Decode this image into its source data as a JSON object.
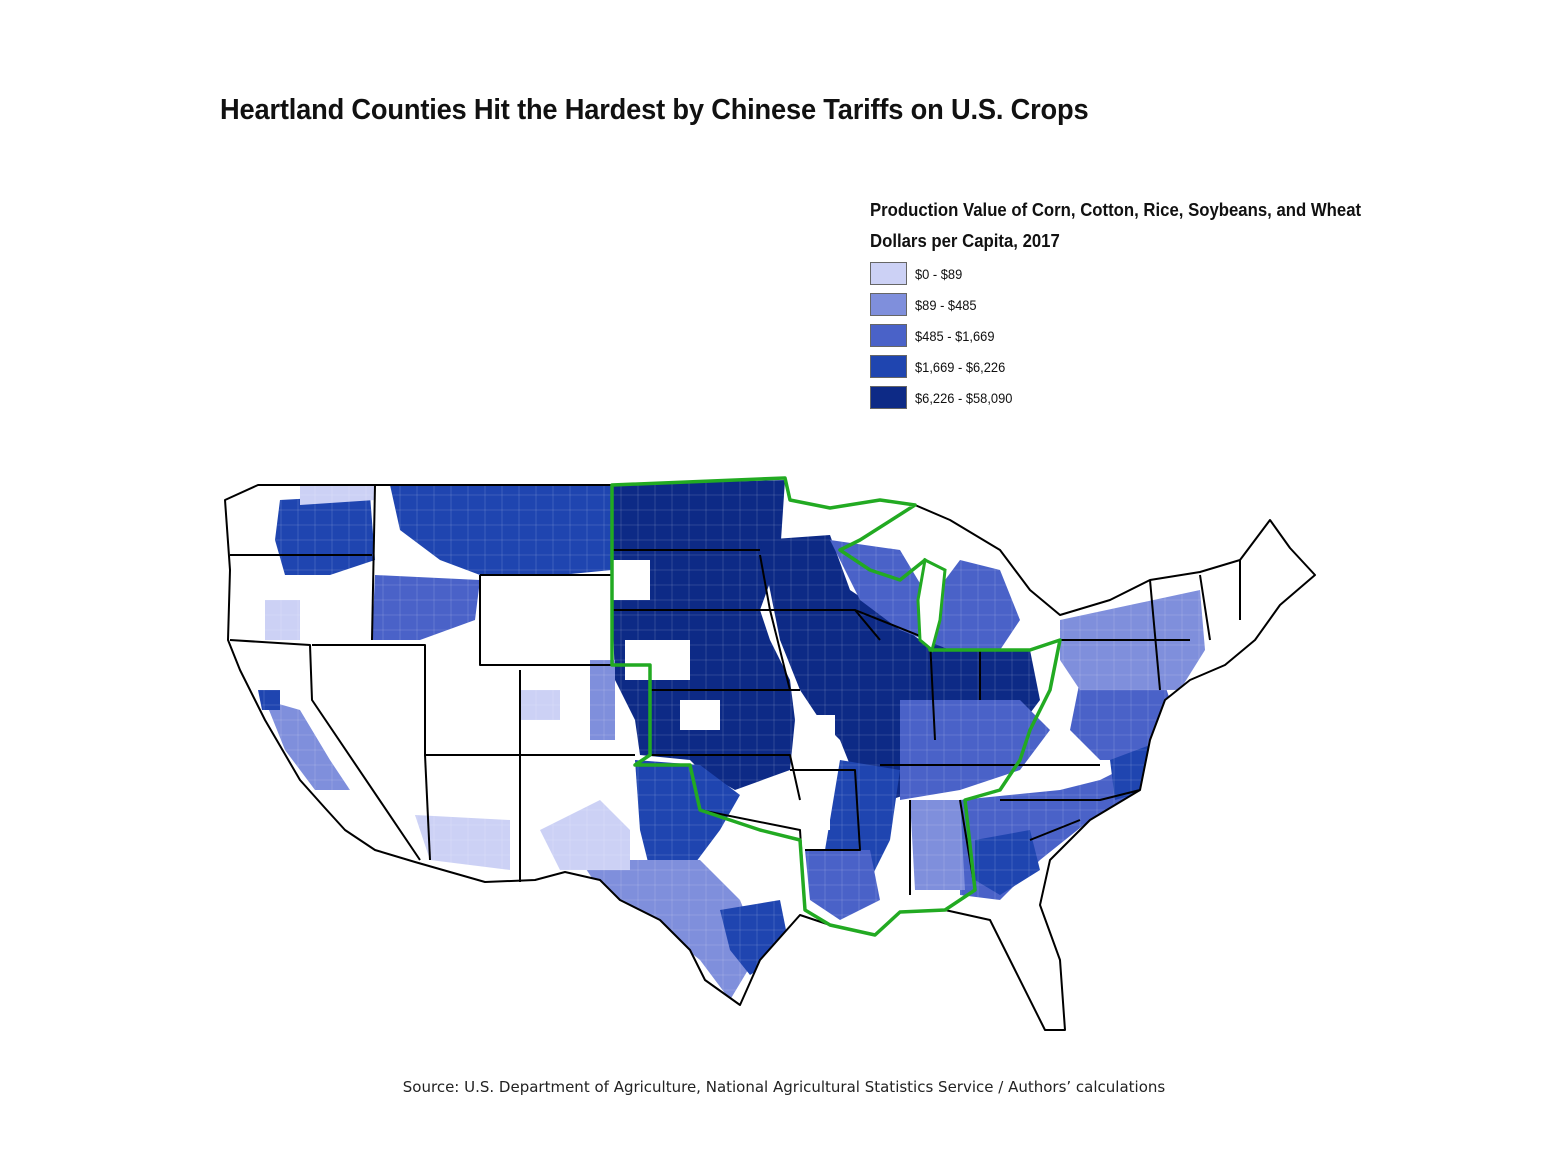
{
  "title": "Heartland Counties Hit the Hardest by Chinese Tariffs on U.S. Crops",
  "legend": {
    "title_line1": "Production Value of Corn, Cotton, Rice, Soybeans, and Wheat",
    "title_line2": "Dollars per Capita, 2017",
    "classes": [
      {
        "label": "$0 - $89",
        "color": "#ccd1f5"
      },
      {
        "label": "$89 - $485",
        "color": "#7f8fdc"
      },
      {
        "label": "$485 - $1,669",
        "color": "#4a62c8"
      },
      {
        "label": "$1,669 - $6,226",
        "color": "#1f45b0"
      },
      {
        "label": "$6,226 - $58,090",
        "color": "#0d2a86"
      }
    ]
  },
  "colors": {
    "boundary": "#000000",
    "heartland_outline": "#22aa22",
    "no_data": "#ffffff"
  },
  "source": "Source: U.S. Department of Agriculture, National Agricultural Statistics Service / Authors’ calculations"
}
